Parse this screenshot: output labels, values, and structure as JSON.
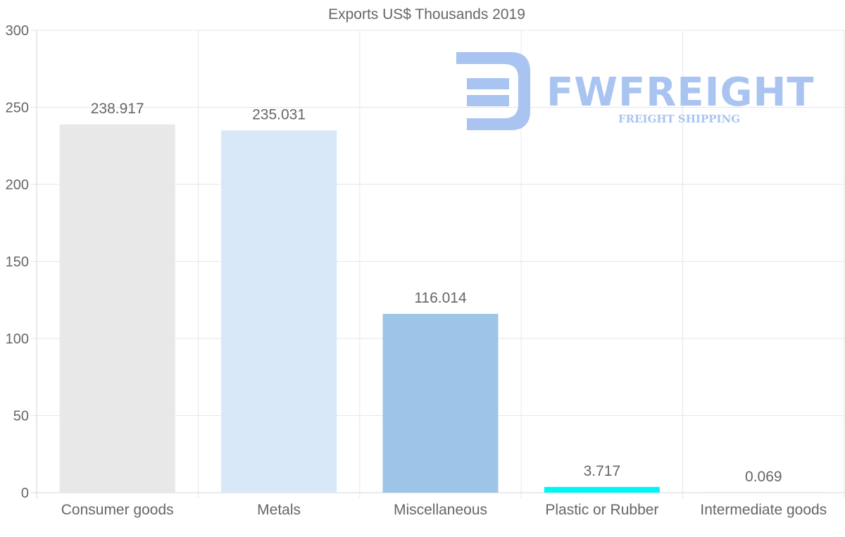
{
  "chart_data": {
    "type": "bar",
    "title": "Exports US$ Thousands 2019",
    "categories": [
      "Consumer goods",
      "Metals",
      "Miscellaneous",
      "Plastic or Rubber",
      "Intermediate goods"
    ],
    "values": [
      238.917,
      235.031,
      116.014,
      3.717,
      0.069
    ],
    "value_labels": [
      "238.917",
      "235.031",
      "116.014",
      "3.717",
      "0.069"
    ],
    "colors": [
      "#e8e8e8",
      "#d8e8f9",
      "#9dc5e8",
      "#00f5f5",
      "#c8c8c8"
    ],
    "ylim": [
      0,
      300
    ],
    "yticks": [
      0,
      50,
      100,
      150,
      200,
      250,
      300
    ],
    "xlabel": "",
    "ylabel": "",
    "grid": true
  },
  "watermark": {
    "brand": "FWFREIGHT",
    "tagline": "FREIGHT SHIPPING",
    "color": "#a9c4f1"
  }
}
